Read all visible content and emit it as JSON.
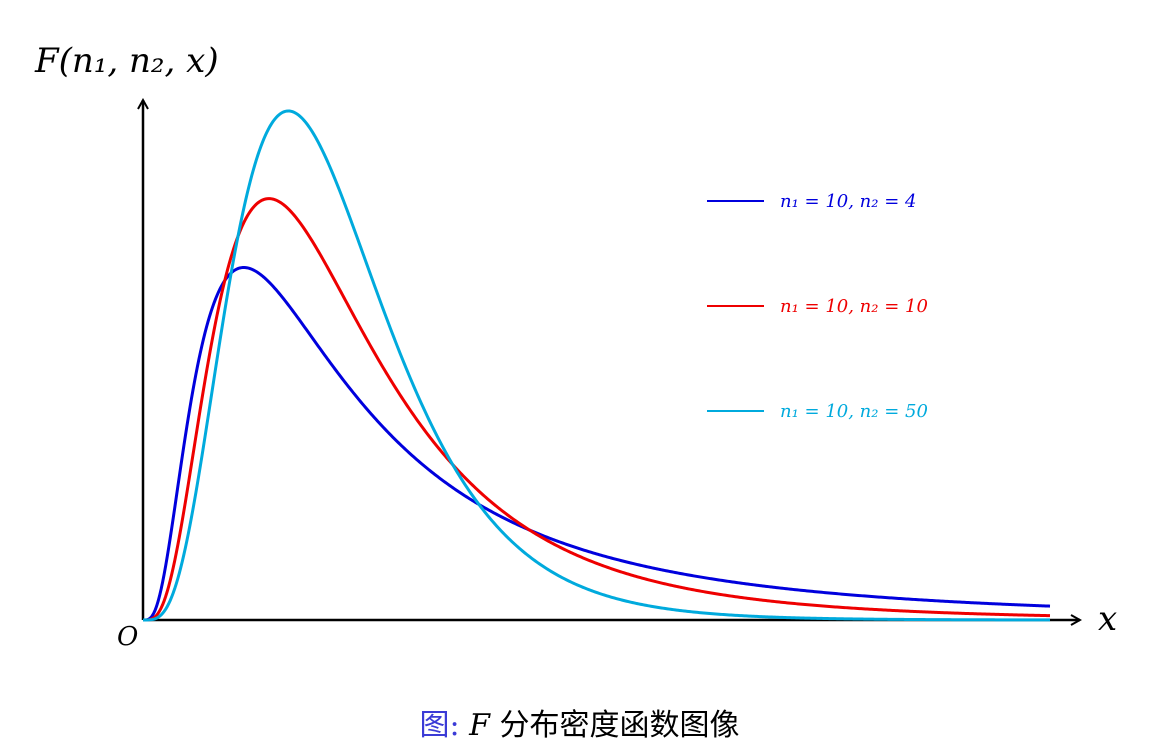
{
  "chart_data": {
    "type": "line",
    "xlabel": "x",
    "ylabel": "F(n₁, n₂, x)",
    "origin_label": "O",
    "grid": false,
    "legend_placement": "top-right",
    "series": [
      {
        "name": "n₁ = 10, n₂ = 4",
        "n1": 10,
        "n2": 4,
        "color": "#0000dd"
      },
      {
        "name": "n₁ = 10, n₂ = 10",
        "n1": 10,
        "n2": 10,
        "color": "#ee0000"
      },
      {
        "name": "n₁ = 10, n₂ = 50",
        "n1": 10,
        "n2": 50,
        "color": "#00aadd"
      }
    ]
  },
  "caption": {
    "prefix": "图:",
    "symbol": "F",
    "text": "分布密度函数图像"
  }
}
